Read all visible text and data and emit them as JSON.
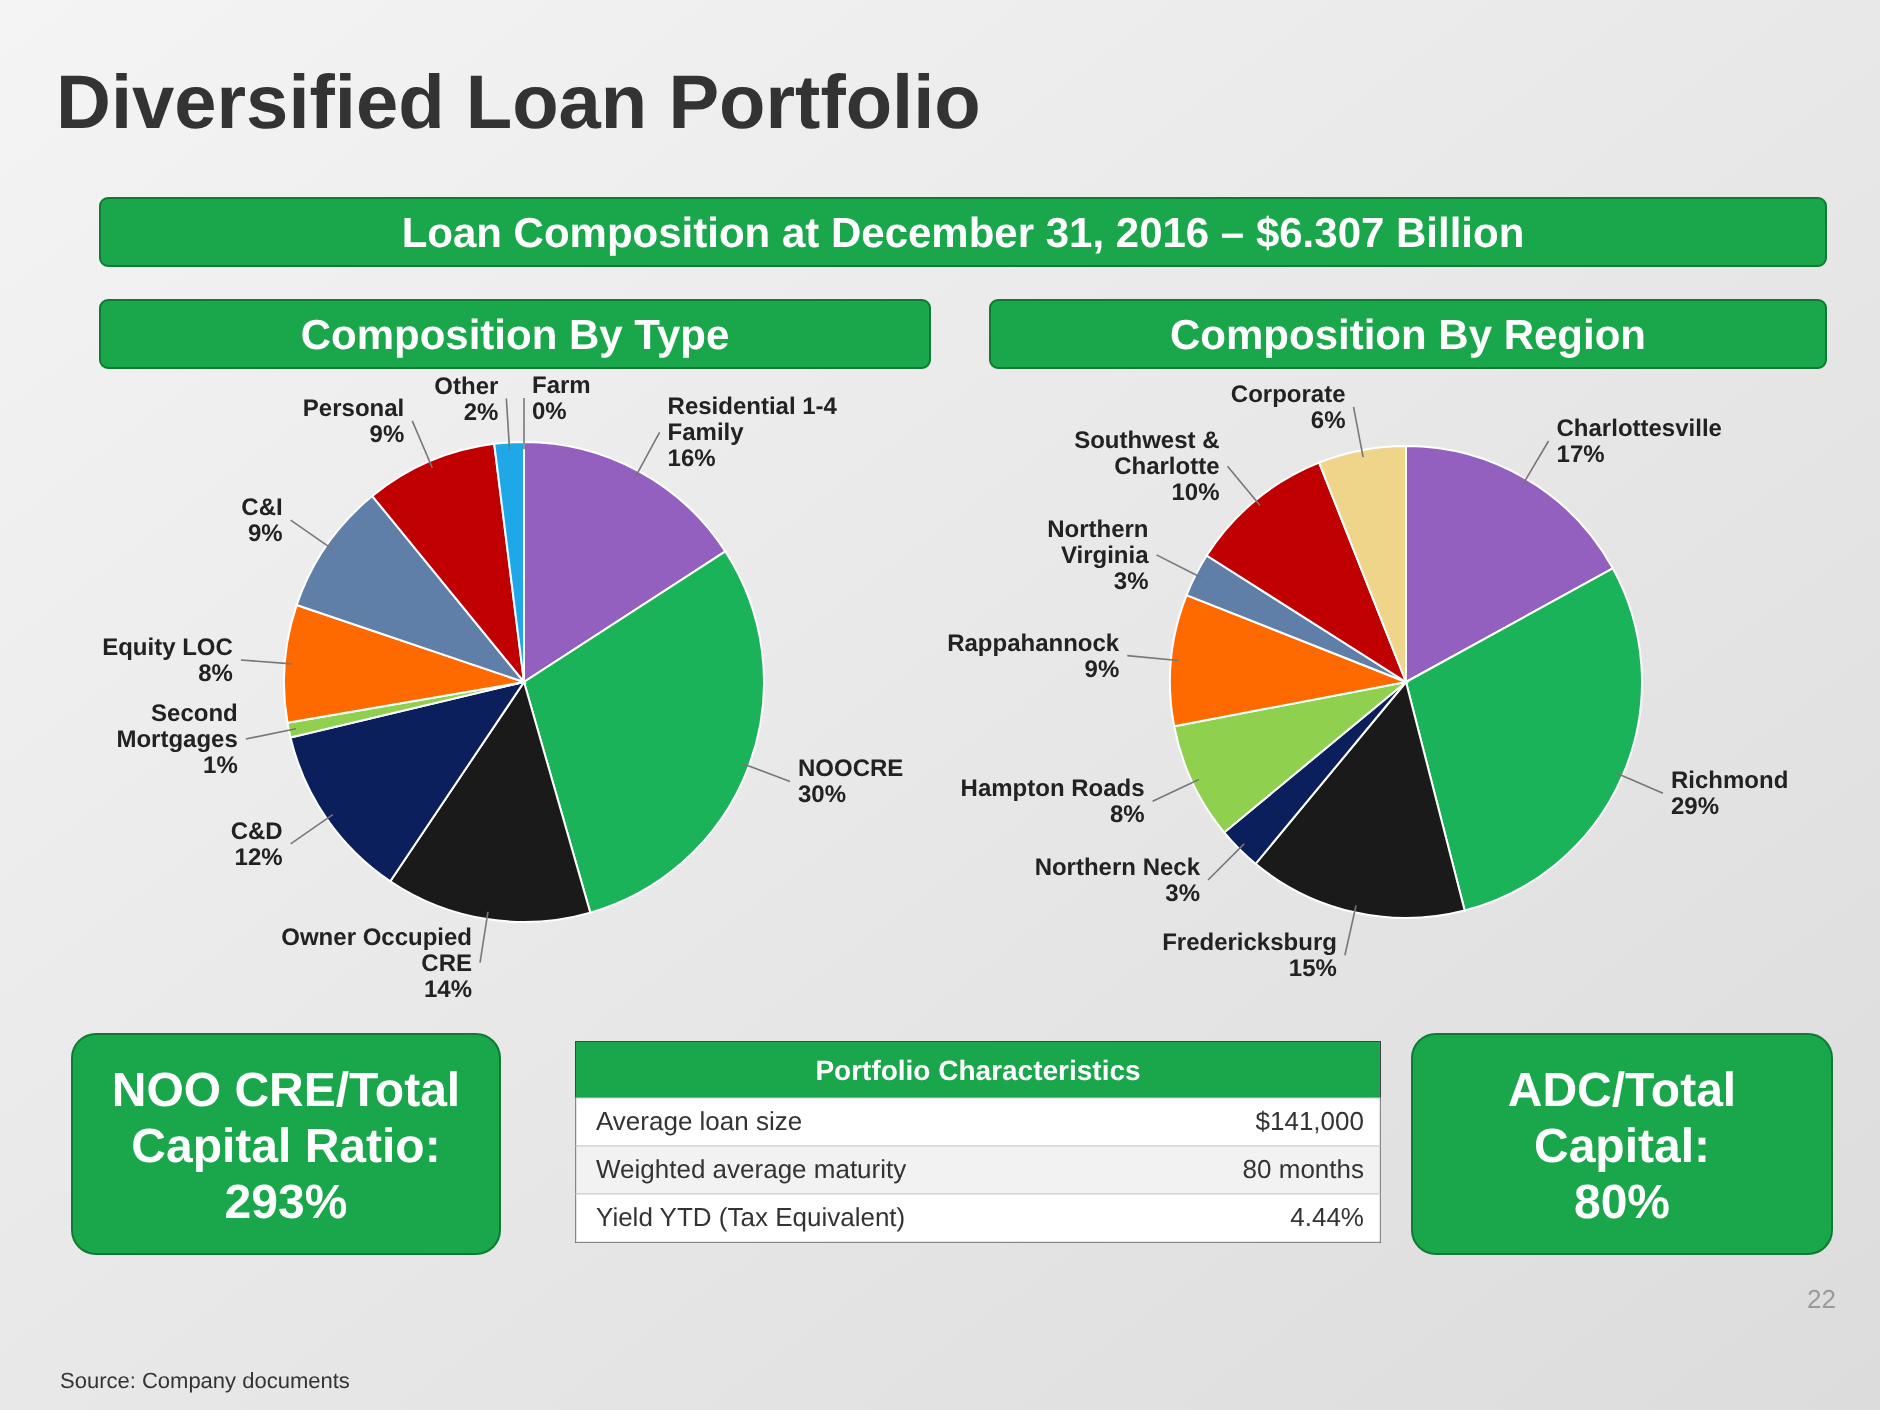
{
  "chart_data": [
    {
      "type": "other",
      "title": "Diversified Loan Portfolio",
      "subtitle": "Loan Composition at December 31, 2016 – $6.307 Billion"
    },
    {
      "type": "pie",
      "title": "Composition By Type",
      "categories": [
        "Residential 1-4 Family",
        "NOOCRE",
        "Owner Occupied CRE",
        "C&D",
        "Second Mortgages",
        "Equity LOC",
        "C&I",
        "Personal",
        "Other",
        "Farm"
      ],
      "values": [
        16,
        30,
        14,
        12,
        1,
        8,
        9,
        9,
        2,
        0
      ],
      "colors": [
        "#9360c0",
        "#1bb35a",
        "#1a1a1a",
        "#0b1f5c",
        "#8fd14f",
        "#ff6a00",
        "#5f7ea8",
        "#c00000",
        "#1fa8e8",
        "#ffffff"
      ],
      "value_labels": [
        "16%",
        "30%",
        "14%",
        "12%",
        "1%",
        "8%",
        "9%",
        "9%",
        "2%",
        "0%"
      ]
    },
    {
      "type": "pie",
      "title": "Composition By Region",
      "categories": [
        "Charlottesville",
        "Richmond",
        "Fredericksburg",
        "Northern Neck",
        "Hampton Roads",
        "Rappahannock",
        "Northern Virginia",
        "Southwest & Charlotte",
        "Corporate"
      ],
      "values": [
        17,
        29,
        15,
        3,
        8,
        9,
        3,
        10,
        6
      ],
      "colors": [
        "#9360c0",
        "#1bb35a",
        "#1a1a1a",
        "#0b1f5c",
        "#8fd14f",
        "#ff6a00",
        "#5f7ea8",
        "#c00000",
        "#efd58a"
      ],
      "value_labels": [
        "17%",
        "29%",
        "15%",
        "3%",
        "8%",
        "9%",
        "3%",
        "10%",
        "6%"
      ]
    },
    {
      "type": "other",
      "title": "Portfolio Characteristics",
      "annotations": [
        "Average loan size",
        "$141,000",
        "Weighted average maturity",
        "80 months",
        "Yield YTD (Tax Equivalent)",
        "4.44%"
      ]
    },
    {
      "type": "other",
      "annotations": [
        "NOO CRE/Total Capital Ratio: 293%",
        "ADC/Total Capital: 80%",
        "Source: Company documents",
        "22"
      ]
    }
  ]
}
